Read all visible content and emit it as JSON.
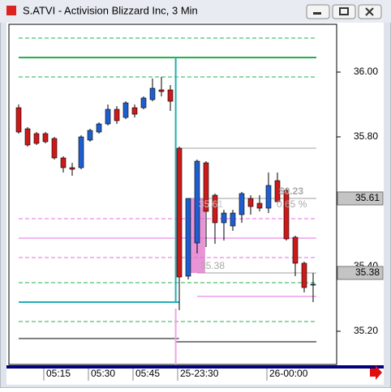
{
  "window": {
    "title": "S.ATVI - Activision Blizzard Inc, 3 Min"
  },
  "chart_data": {
    "type": "candlestick",
    "up_color": "#1e5fd0",
    "down_color": "#cc1a1a",
    "categories": [
      null,
      null,
      null,
      "05:15",
      null,
      null,
      null,
      null,
      "05:30",
      null,
      null,
      null,
      null,
      "05:45",
      null,
      null,
      null,
      null,
      "25-23:30",
      null,
      null,
      null,
      null,
      null,
      null,
      null,
      null,
      null,
      "26-00:00",
      null,
      null,
      null,
      null,
      null
    ],
    "candles": [
      {
        "open": 35.89,
        "high": 35.9,
        "low": 35.81,
        "close": 35.815
      },
      {
        "open": 35.825,
        "high": 35.83,
        "low": 35.77,
        "close": 35.775
      },
      {
        "open": 35.81,
        "high": 35.815,
        "low": 35.775,
        "close": 35.78
      },
      {
        "open": 35.81,
        "high": 35.815,
        "low": 35.78,
        "close": 35.785
      },
      {
        "open": 35.795,
        "high": 35.8,
        "low": 35.73,
        "close": 35.735
      },
      {
        "open": 35.735,
        "high": 35.74,
        "low": 35.69,
        "close": 35.705
      },
      {
        "open": 35.705,
        "high": 35.72,
        "low": 35.68,
        "close": 35.7
      },
      {
        "open": 35.705,
        "high": 35.805,
        "low": 35.7,
        "close": 35.8
      },
      {
        "open": 35.79,
        "high": 35.825,
        "low": 35.785,
        "close": 35.82
      },
      {
        "open": 35.815,
        "high": 35.845,
        "low": 35.81,
        "close": 35.84
      },
      {
        "open": 35.84,
        "high": 35.9,
        "low": 35.835,
        "close": 35.885
      },
      {
        "open": 35.885,
        "high": 35.895,
        "low": 35.84,
        "close": 35.85
      },
      {
        "open": 35.86,
        "high": 35.91,
        "low": 35.855,
        "close": 35.905
      },
      {
        "open": 35.89,
        "high": 35.9,
        "low": 35.86,
        "close": 35.87
      },
      {
        "open": 35.89,
        "high": 35.925,
        "low": 35.885,
        "close": 35.92
      },
      {
        "open": 35.915,
        "high": 35.98,
        "low": 35.91,
        "close": 35.95
      },
      {
        "open": 35.945,
        "high": 35.985,
        "low": 35.925,
        "close": 35.94
      },
      {
        "open": 35.945,
        "high": 35.96,
        "low": 35.88,
        "close": 35.91
      },
      {
        "open": 35.765,
        "high": 35.77,
        "low": 35.265,
        "close": 35.3675
      },
      {
        "open": 35.37,
        "high": 35.61,
        "low": 35.36,
        "close": 35.61
      },
      {
        "open": 35.4725,
        "high": 35.73,
        "low": 35.44,
        "close": 35.725
      },
      {
        "open": 35.72,
        "high": 35.725,
        "low": 35.46,
        "close": 35.57
      },
      {
        "open": 35.62,
        "high": 35.625,
        "low": 35.47,
        "close": 35.535
      },
      {
        "open": 35.535,
        "high": 35.575,
        "low": 35.48,
        "close": 35.565
      },
      {
        "open": 35.525,
        "high": 35.575,
        "low": 35.51,
        "close": 35.565
      },
      {
        "open": 35.56,
        "high": 35.63,
        "low": 35.535,
        "close": 35.625
      },
      {
        "open": 35.61,
        "high": 35.62,
        "low": 35.56,
        "close": 35.585
      },
      {
        "open": 35.595,
        "high": 35.62,
        "low": 35.57,
        "close": 35.58
      },
      {
        "open": 35.58,
        "high": 35.69,
        "low": 35.565,
        "close": 35.65
      },
      {
        "open": 35.665,
        "high": 35.69,
        "low": 35.595,
        "close": 35.6
      },
      {
        "open": 35.635,
        "high": 35.64,
        "low": 35.48,
        "close": 35.485
      },
      {
        "open": 35.49,
        "high": 35.495,
        "low": 35.37,
        "close": 35.41
      },
      {
        "open": 35.41,
        "high": 35.415,
        "low": 35.32,
        "close": 35.335
      },
      {
        "open": 35.345,
        "high": 35.38,
        "low": 35.29,
        "close": 35.345
      }
    ],
    "ylim": [
      35.1,
      36.15
    ],
    "yticks": [
      {
        "value": 36,
        "label": "36.00"
      },
      {
        "value": 35.8,
        "label": "35.80"
      },
      {
        "value": 35.4,
        "label": "35.40"
      },
      {
        "value": 35.2,
        "label": "35.20"
      }
    ],
    "price_labels": [
      {
        "value": 35.61,
        "label": "35.61"
      },
      {
        "value": 35.38,
        "label": "35.38"
      }
    ],
    "levels": [
      {
        "value": 36.105,
        "color": "#22b14c",
        "dash": true,
        "start": 0,
        "end": 33
      },
      {
        "value": 36.045,
        "color": "#22b14c",
        "dash": false,
        "start": 0,
        "end": 33
      },
      {
        "value": 35.985,
        "color": "#22b14c",
        "dash": true,
        "start": 0,
        "end": 33
      },
      {
        "value": 35.765,
        "color": "#a0a0a0",
        "dash": false,
        "start": 18,
        "end": 33
      },
      {
        "value": 35.61,
        "color": "#a0a0a0",
        "dash": false,
        "start": 19,
        "end": 33
      },
      {
        "value": 35.5475,
        "color": "#e86ee0",
        "dash": true,
        "start": 0,
        "end": 33
      },
      {
        "value": 35.4875,
        "color": "#e86ee0",
        "dash": false,
        "start": 0,
        "end": 33
      },
      {
        "value": 35.4275,
        "color": "#e86ee0",
        "dash": true,
        "start": 0,
        "end": 33
      },
      {
        "value": 35.38,
        "color": "#a0a0a0",
        "dash": false,
        "start": 20,
        "end": 33
      },
      {
        "value": 35.35,
        "color": "#22b14c",
        "dash": true,
        "start": 0,
        "end": 33
      },
      {
        "value": 35.3075,
        "color": "#e86ee0",
        "dash": false,
        "start": 20,
        "end": 33
      },
      {
        "value": 35.29,
        "color": "#1fb0b8",
        "dash": false,
        "start": 0,
        "end": 17.6
      },
      {
        "value": 35.23,
        "color": "#22b14c",
        "dash": true,
        "start": 0,
        "end": 33
      },
      {
        "value": 35.1775,
        "color": "#000000",
        "dash": false,
        "start": 0,
        "end": 17.6
      },
      {
        "value": 35.1675,
        "color": "#000000",
        "dash": false,
        "start": 17.6,
        "end": 33
      }
    ],
    "steps": [
      {
        "x": 17.6,
        "from": 35.29,
        "to": 36.045,
        "color": "#1fb0b8"
      }
    ],
    "session_break": {
      "x": 17.6,
      "top": 35.27,
      "color": "#f4a0e8"
    },
    "measure": {
      "from": 35.38,
      "to": 35.61,
      "start": 19.3,
      "end": 20.9,
      "change_label": "$0.23",
      "pct_label": "0.65 %",
      "low_label": "35.38",
      "high_label": "35.61"
    }
  }
}
